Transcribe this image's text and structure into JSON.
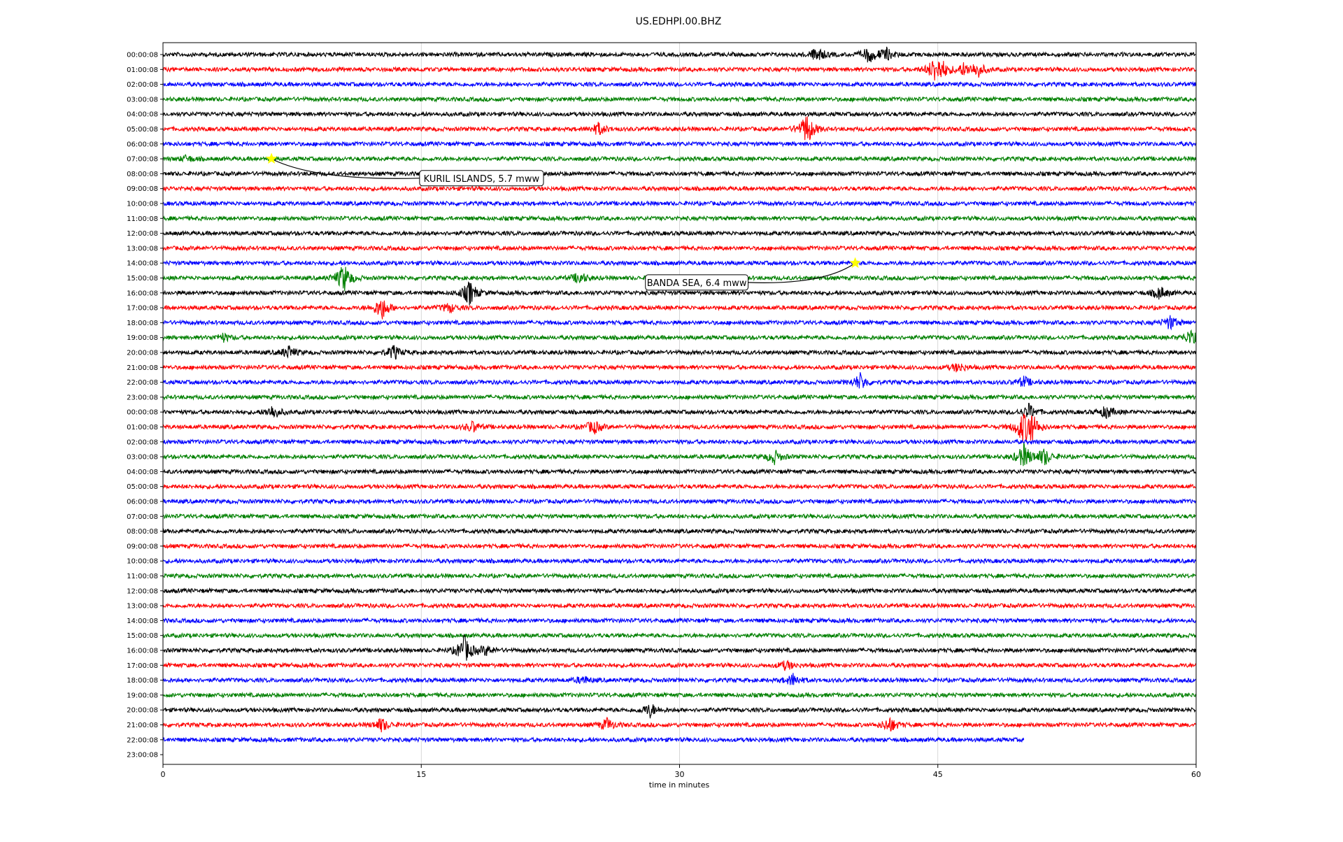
{
  "chart_data": {
    "type": "line",
    "title": "US.EDHPI.00.BHZ",
    "xlabel": "time in minutes",
    "ylabel": "",
    "xlim": [
      0,
      60
    ],
    "x_ticks": [
      0,
      15,
      30,
      45,
      60
    ],
    "grid": "vertical",
    "row_labels": [
      "00:00:08",
      "01:00:08",
      "02:00:08",
      "03:00:08",
      "04:00:08",
      "05:00:08",
      "06:00:08",
      "07:00:08",
      "08:00:08",
      "09:00:08",
      "10:00:08",
      "11:00:08",
      "12:00:08",
      "13:00:08",
      "14:00:08",
      "15:00:08",
      "16:00:08",
      "17:00:08",
      "18:00:08",
      "19:00:08",
      "20:00:08",
      "21:00:08",
      "22:00:08",
      "23:00:08",
      "00:00:08",
      "01:00:08",
      "02:00:08",
      "03:00:08",
      "04:00:08",
      "05:00:08",
      "06:00:08",
      "07:00:08",
      "08:00:08",
      "09:00:08",
      "10:00:08",
      "11:00:08",
      "12:00:08",
      "13:00:08",
      "14:00:08",
      "15:00:08",
      "16:00:08",
      "17:00:08",
      "18:00:08",
      "19:00:08",
      "20:00:08",
      "21:00:08",
      "22:00:08",
      "23:00:08"
    ],
    "trace_colors": [
      "#000000",
      "#ff0000",
      "#0000ff",
      "#008000"
    ],
    "last_trace": {
      "row": 46,
      "end_minute": 50
    },
    "events": [
      {
        "row": 0,
        "minute": 38,
        "amp": 1.0
      },
      {
        "row": 0,
        "minute": 41,
        "amp": 1.0
      },
      {
        "row": 0,
        "minute": 42,
        "amp": 0.8
      },
      {
        "row": 1,
        "minute": 44.8,
        "amp": 1.3
      },
      {
        "row": 1,
        "minute": 45.2,
        "amp": 1.0
      },
      {
        "row": 1,
        "minute": 46.5,
        "amp": 0.7
      },
      {
        "row": 1,
        "minute": 47.3,
        "amp": 1.0
      },
      {
        "row": 5,
        "minute": 25.3,
        "amp": 0.8
      },
      {
        "row": 5,
        "minute": 37.4,
        "amp": 2.1
      },
      {
        "row": 7,
        "minute": 1.4,
        "amp": 0.4
      },
      {
        "row": 15,
        "minute": 10.5,
        "amp": 1.9
      },
      {
        "row": 15,
        "minute": 24.2,
        "amp": 0.8
      },
      {
        "row": 16,
        "minute": 17.8,
        "amp": 1.6
      },
      {
        "row": 16,
        "minute": 57.9,
        "amp": 0.8
      },
      {
        "row": 17,
        "minute": 12.7,
        "amp": 1.6
      },
      {
        "row": 17,
        "minute": 16.6,
        "amp": 0.6
      },
      {
        "row": 18,
        "minute": 58.5,
        "amp": 0.9
      },
      {
        "row": 19,
        "minute": 3.5,
        "amp": 0.5
      },
      {
        "row": 19,
        "minute": 59.8,
        "amp": 1.4
      },
      {
        "row": 20,
        "minute": 7.3,
        "amp": 0.8
      },
      {
        "row": 20,
        "minute": 13.4,
        "amp": 0.9
      },
      {
        "row": 21,
        "minute": 46.2,
        "amp": 0.6
      },
      {
        "row": 22,
        "minute": 40.5,
        "amp": 1.1
      },
      {
        "row": 22,
        "minute": 50.0,
        "amp": 0.7
      },
      {
        "row": 24,
        "minute": 6.4,
        "amp": 0.9
      },
      {
        "row": 24,
        "minute": 50.3,
        "amp": 1.0
      },
      {
        "row": 24,
        "minute": 54.8,
        "amp": 0.8
      },
      {
        "row": 25,
        "minute": 18.0,
        "amp": 0.7
      },
      {
        "row": 25,
        "minute": 25.0,
        "amp": 0.9
      },
      {
        "row": 25,
        "minute": 49.9,
        "amp": 1.6
      },
      {
        "row": 25,
        "minute": 50.4,
        "amp": 2.0
      },
      {
        "row": 27,
        "minute": 35.5,
        "amp": 0.9
      },
      {
        "row": 27,
        "minute": 50.0,
        "amp": 1.6
      },
      {
        "row": 27,
        "minute": 51.2,
        "amp": 1.1
      },
      {
        "row": 40,
        "minute": 17.5,
        "amp": 1.9
      },
      {
        "row": 40,
        "minute": 18.8,
        "amp": 0.6
      },
      {
        "row": 41,
        "minute": 36.2,
        "amp": 0.6
      },
      {
        "row": 42,
        "minute": 36.6,
        "amp": 0.8
      },
      {
        "row": 42,
        "minute": 24.4,
        "amp": 0.5
      },
      {
        "row": 44,
        "minute": 28.3,
        "amp": 0.9
      },
      {
        "row": 45,
        "minute": 12.7,
        "amp": 0.9
      },
      {
        "row": 45,
        "minute": 25.8,
        "amp": 0.8
      },
      {
        "row": 45,
        "minute": 42.2,
        "amp": 1.0
      }
    ],
    "annotations": [
      {
        "text": "KURIL ISLANDS, 5.7 mww",
        "row": 7,
        "minute": 6.3,
        "box_row": 8.3,
        "box_minute": 18.5
      },
      {
        "text": "BANDA SEA, 6.4 mww",
        "row": 14,
        "minute": 40.2,
        "box_row": 15.3,
        "box_minute": 31.0
      }
    ],
    "marker_color": "#ffff00"
  }
}
